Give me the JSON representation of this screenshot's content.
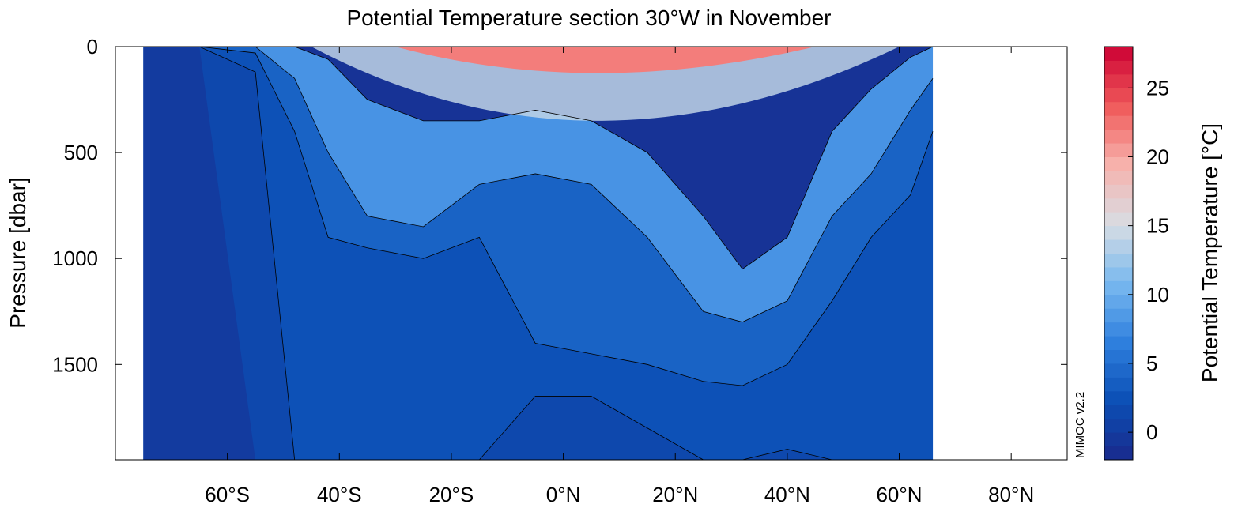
{
  "chart_data": {
    "type": "heatmap",
    "title": "Potential Temperature section 30°W in November",
    "xlabel": "",
    "ylabel": "Pressure [dbar]",
    "colorbar_label": "Potential Temperature [°C]",
    "credit": "MIMOC v2.2",
    "xlim": [
      -80,
      90
    ],
    "ylim": [
      1950,
      0
    ],
    "x_ticks": [
      {
        "value": -60,
        "label": "60°S"
      },
      {
        "value": -40,
        "label": "40°S"
      },
      {
        "value": -20,
        "label": "20°S"
      },
      {
        "value": 0,
        "label": "0°N"
      },
      {
        "value": 20,
        "label": "20°N"
      },
      {
        "value": 40,
        "label": "40°N"
      },
      {
        "value": 60,
        "label": "60°N"
      },
      {
        "value": 80,
        "label": "80°N"
      }
    ],
    "y_ticks": [
      {
        "value": 0,
        "label": "0"
      },
      {
        "value": 500,
        "label": "500"
      },
      {
        "value": 1000,
        "label": "1000"
      },
      {
        "value": 1500,
        "label": "1500"
      }
    ],
    "colorbar": {
      "vmin": -2,
      "vmax": 28,
      "step": 1,
      "ticks": [
        {
          "value": 0,
          "label": "0"
        },
        {
          "value": 5,
          "label": "5"
        },
        {
          "value": 10,
          "label": "10"
        },
        {
          "value": 15,
          "label": "15"
        },
        {
          "value": 20,
          "label": "20"
        },
        {
          "value": 25,
          "label": "25"
        }
      ],
      "color_stops": [
        "#1a2a8c",
        "#0b4fb5",
        "#2f80de",
        "#79b9ef",
        "#d8dde3",
        "#f7b2ac",
        "#f05a5a",
        "#cc0033"
      ]
    },
    "isotherm_depths": [
      {
        "lat": -75,
        "t8": 0,
        "t4": 0,
        "t3": 0,
        "t2": 0,
        "t1": 0
      },
      {
        "lat": -65,
        "t8": 0,
        "t4": 0,
        "t3": 0,
        "t2": 0,
        "t1": 0
      },
      {
        "lat": -55,
        "t8": 0,
        "t4": 0,
        "t3": 30,
        "t2": 120,
        "t1": 1950
      },
      {
        "lat": -48,
        "t8": 0,
        "t4": 150,
        "t3": 400,
        "t2": 1950,
        "t1": 1950
      },
      {
        "lat": -42,
        "t8": 60,
        "t4": 500,
        "t3": 900,
        "t2": 1950,
        "t1": 1950
      },
      {
        "lat": -35,
        "t8": 250,
        "t4": 800,
        "t3": 950,
        "t2": 1950,
        "t1": 1950
      },
      {
        "lat": -25,
        "t8": 350,
        "t4": 850,
        "t3": 1000,
        "t2": 1950,
        "t1": 1950
      },
      {
        "lat": -15,
        "t8": 350,
        "t4": 650,
        "t3": 900,
        "t2": 1950,
        "t1": 1950
      },
      {
        "lat": -5,
        "t8": 300,
        "t4": 600,
        "t3": 1400,
        "t2": 1650,
        "t1": 1950
      },
      {
        "lat": 5,
        "t8": 350,
        "t4": 650,
        "t3": 1450,
        "t2": 1650,
        "t1": 1950
      },
      {
        "lat": 15,
        "t8": 500,
        "t4": 900,
        "t3": 1500,
        "t2": 1800,
        "t1": 1950
      },
      {
        "lat": 25,
        "t8": 800,
        "t4": 1250,
        "t3": 1580,
        "t2": 1950,
        "t1": 1950
      },
      {
        "lat": 32,
        "t8": 1050,
        "t4": 1300,
        "t3": 1600,
        "t2": 1950,
        "t1": 1950
      },
      {
        "lat": 40,
        "t8": 900,
        "t4": 1200,
        "t3": 1500,
        "t2": 1900,
        "t1": 1950
      },
      {
        "lat": 48,
        "t8": 400,
        "t4": 800,
        "t3": 1200,
        "t2": 1950,
        "t1": 1950
      },
      {
        "lat": 55,
        "t8": 200,
        "t4": 600,
        "t3": 900,
        "t2": 1950,
        "t1": 1950
      },
      {
        "lat": 62,
        "t8": 50,
        "t4": 300,
        "t3": 700,
        "t2": 1950,
        "t1": 1950
      },
      {
        "lat": 66,
        "t8": 0,
        "t4": 150,
        "t3": 400,
        "t2": 1950,
        "t1": 1950
      }
    ]
  }
}
